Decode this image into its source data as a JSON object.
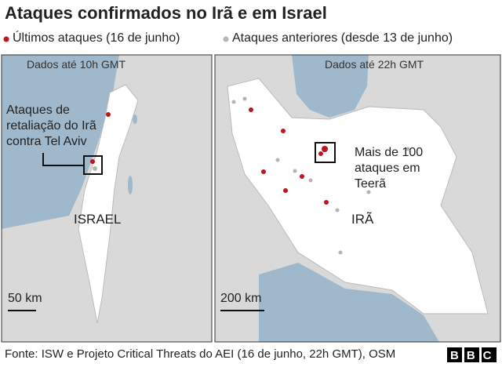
{
  "header": {
    "title": "Ataques confirmados no Irã e em Israel"
  },
  "legend": {
    "items": [
      {
        "label": "Últimos ataques (16 de junho)",
        "color": "#c3131b"
      },
      {
        "label": "Ataques anteriores (desde 13 de junho)",
        "color": "#b4b4b4"
      }
    ]
  },
  "panels": [
    {
      "timestamp": "Dados até 10h GMT",
      "annotation": "Ataques de retaliação do Irã contra Tel Aviv",
      "country": "ISRAEL",
      "scale": "50 km"
    },
    {
      "timestamp": "Dados até 22h GMT",
      "annotation": "Mais de 100 ataques em Teerã",
      "country": "IRÃ",
      "scale": "200 km"
    }
  ],
  "footer": {
    "source": "Fonte: ISW e Projeto Critical Threats do AEI (16 de junho, 22h GMT), OSM",
    "logo": "BBC"
  }
}
